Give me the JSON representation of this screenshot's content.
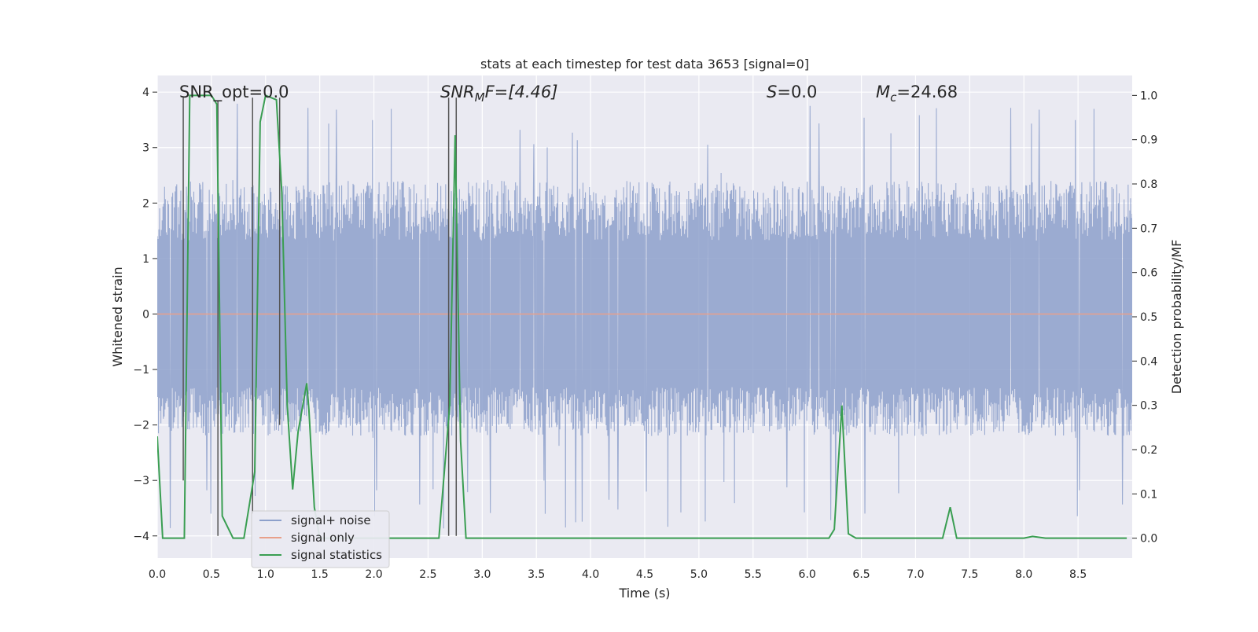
{
  "chart_data": {
    "type": "line",
    "title": "stats at each timestep for test data 3653 [signal=0]",
    "xlabel": "Time (s)",
    "ylabel": "Whitened strain",
    "ylabel_right": "Detection probability/MF",
    "xlim": [
      0,
      9.0
    ],
    "ylim": [
      -4.4,
      4.3
    ],
    "ylim_right": [
      -0.045,
      1.045
    ],
    "x_ticks": [
      0.0,
      0.5,
      1.0,
      1.5,
      2.0,
      2.5,
      3.0,
      3.5,
      4.0,
      4.5,
      5.0,
      5.5,
      6.0,
      6.5,
      7.0,
      7.5,
      8.0,
      8.5
    ],
    "x_tick_labels": [
      "0.0",
      "0.5",
      "1.0",
      "1.5",
      "2.0",
      "2.5",
      "3.0",
      "3.5",
      "4.0",
      "4.5",
      "5.0",
      "5.5",
      "6.0",
      "6.5",
      "7.0",
      "7.5",
      "8.0",
      "8.5"
    ],
    "y_ticks": [
      4,
      3,
      2,
      1,
      0,
      -1,
      -2,
      -3,
      -4
    ],
    "y_tick_labels": [
      "4",
      "3",
      "2",
      "1",
      "0",
      "−1",
      "−2",
      "−3",
      "−4"
    ],
    "y2_ticks": [
      1.0,
      0.9,
      0.8,
      0.7,
      0.6,
      0.5,
      0.4,
      0.3,
      0.2,
      0.1,
      0.0
    ],
    "y2_tick_labels": [
      "1.0",
      "0.9",
      "0.8",
      "0.7",
      "0.6",
      "0.5",
      "0.4",
      "0.3",
      "0.2",
      "0.1",
      "0.0"
    ],
    "annotations": {
      "snr_opt": "SNR_opt=0.0",
      "snr_mf_main": "SNR",
      "snr_mf_sub": "M",
      "snr_mf_rest": "F=[4.46]",
      "s_main": "S",
      "s_rest": "=0.0",
      "mc_main": "M",
      "mc_sub": "c",
      "mc_rest": "=24.68"
    },
    "legend": {
      "position": "lower-left",
      "entries": [
        {
          "label": "signal+ noise",
          "color": "#8da0cb"
        },
        {
          "label": "signal only",
          "color": "#e8a08a"
        },
        {
          "label": "signal statistics",
          "color": "#3a9e52"
        }
      ]
    },
    "series": [
      {
        "name": "signal+ noise",
        "color": "#8da0cb",
        "description": "whitened strain, dense noise roughly in [-2.2, 2.4] with spikes up to about 3.9 and down to about -4",
        "envelope_upper": 2.4,
        "envelope_lower": -2.2
      },
      {
        "name": "signal only",
        "color": "#e8a08a",
        "x": [
          0.0,
          9.0
        ],
        "y": [
          0.0,
          0.0
        ]
      },
      {
        "name": "signal statistics",
        "color": "#3a9e52",
        "axis": "right",
        "x": [
          0.0,
          0.05,
          0.2,
          0.25,
          0.3,
          0.5,
          0.55,
          0.6,
          0.7,
          0.8,
          0.9,
          0.95,
          1.0,
          1.1,
          1.15,
          1.2,
          1.25,
          1.3,
          1.38,
          1.4,
          1.45,
          1.5,
          2.0,
          2.6,
          2.7,
          2.75,
          2.8,
          2.85,
          3.0,
          4.0,
          5.0,
          6.0,
          6.2,
          6.25,
          6.32,
          6.38,
          6.45,
          7.0,
          7.25,
          7.32,
          7.38,
          7.5,
          8.0,
          8.08,
          8.2,
          8.4,
          8.95
        ],
        "y": [
          0.23,
          0.0,
          0.0,
          0.0,
          1.0,
          1.0,
          0.98,
          0.05,
          0.0,
          0.0,
          0.15,
          0.94,
          1.0,
          0.99,
          0.78,
          0.3,
          0.11,
          0.24,
          0.35,
          0.29,
          0.07,
          0.0,
          0.0,
          0.0,
          0.3,
          0.91,
          0.22,
          0.0,
          0.0,
          0.0,
          0.0,
          0.0,
          0.0,
          0.02,
          0.3,
          0.01,
          0.0,
          0.0,
          0.0,
          0.07,
          0.0,
          0.0,
          0.0,
          0.004,
          0.0,
          0.0,
          0.0
        ]
      }
    ],
    "vertical_markers": {
      "color": "#555555",
      "x": [
        0.24,
        0.56,
        0.88,
        1.13,
        2.69,
        2.76
      ],
      "y_top": [
        3.9,
        3.85,
        3.9,
        3.9,
        3.9,
        3.9
      ],
      "y_bottom": [
        -3.0,
        -4.0,
        -3.6,
        -2.0,
        -4.0,
        -4.0
      ]
    }
  }
}
